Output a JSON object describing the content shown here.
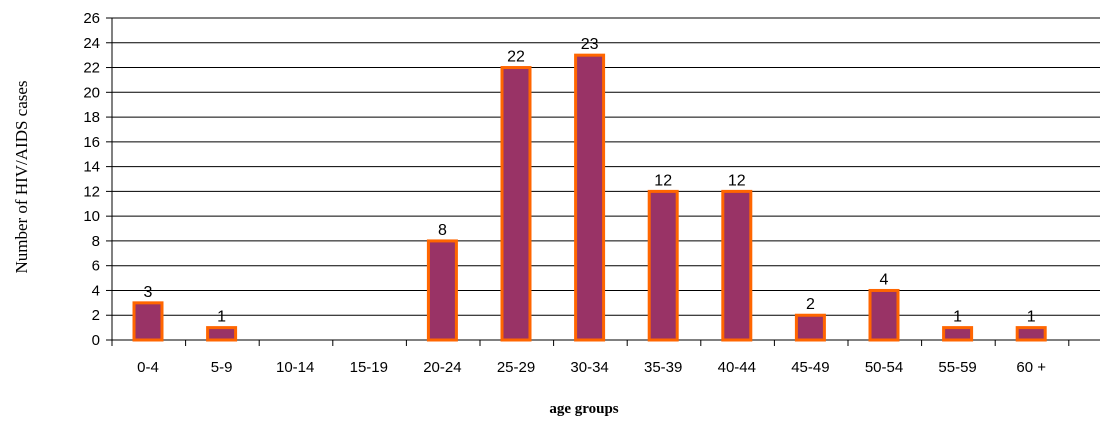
{
  "chart_data": {
    "type": "bar",
    "categories": [
      "0-4",
      "5-9",
      "10-14",
      "15-19",
      "20-24",
      "25-29",
      "30-34",
      "35-39",
      "40-44",
      "45-49",
      "50-54",
      "55-59",
      "60 +"
    ],
    "values": [
      3,
      1,
      0,
      0,
      8,
      22,
      23,
      12,
      12,
      2,
      4,
      1,
      1
    ],
    "data_labels": [
      "3",
      "1",
      "",
      "",
      "8",
      "22",
      "23",
      "12",
      "12",
      "2",
      "4",
      "1",
      "1"
    ],
    "title": "",
    "xlabel": "age groups",
    "ylabel": "Number of HIV/AIDS cases",
    "ylim": [
      0,
      26
    ],
    "yticks": [
      0,
      2,
      4,
      6,
      8,
      10,
      12,
      14,
      16,
      18,
      20,
      22,
      24,
      26
    ],
    "grid": "horizontal",
    "legend": "none",
    "colors": {
      "bar_fill": "#993366",
      "bar_stroke": "#FF6600",
      "grid": "#000000"
    }
  }
}
